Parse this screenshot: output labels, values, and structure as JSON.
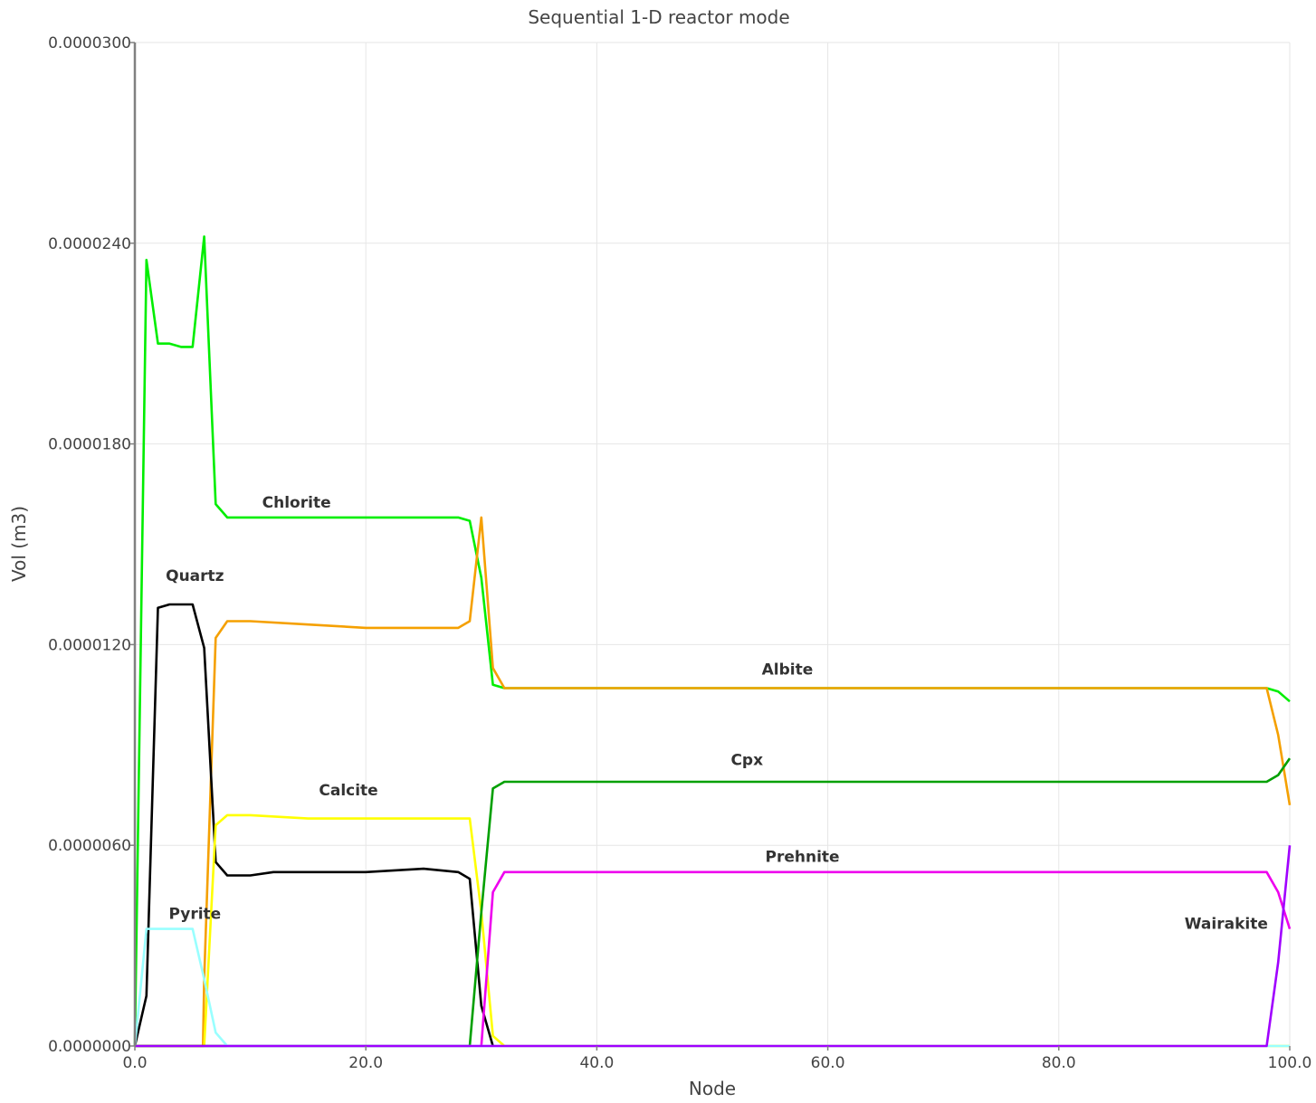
{
  "chart_data": {
    "type": "line",
    "title": "Sequential 1-D reactor mode",
    "xlabel": "Node",
    "ylabel": "Vol (m3)",
    "xlim": [
      0,
      100
    ],
    "ylim": [
      0,
      3e-05
    ],
    "x_ticks": [
      0,
      20,
      40,
      60,
      80,
      100
    ],
    "x_tick_labels": [
      "0.0",
      "20.0",
      "40.0",
      "60.0",
      "80.0",
      "100.0"
    ],
    "y_ticks": [
      0,
      6e-06,
      1.2e-05,
      1.8e-05,
      2.4e-05,
      3e-05
    ],
    "y_tick_labels": [
      "0.0000000",
      "0.0000060",
      "0.0000120",
      "0.0000180",
      "0.0000240",
      "0.0000300"
    ],
    "grid": true,
    "series": [
      {
        "name": "Chlorite",
        "color": "#00ee00",
        "points": [
          [
            0,
            0
          ],
          [
            1,
            2.35e-05
          ],
          [
            2,
            2.1e-05
          ],
          [
            3,
            2.1e-05
          ],
          [
            4,
            2.09e-05
          ],
          [
            5,
            2.09e-05
          ],
          [
            6,
            2.42e-05
          ],
          [
            7,
            1.62e-05
          ],
          [
            8,
            1.58e-05
          ],
          [
            10,
            1.58e-05
          ],
          [
            15,
            1.58e-05
          ],
          [
            18,
            1.58e-05
          ],
          [
            25,
            1.58e-05
          ],
          [
            28,
            1.58e-05
          ],
          [
            29,
            1.57e-05
          ],
          [
            30,
            1.4e-05
          ],
          [
            31,
            1.08e-05
          ],
          [
            32,
            1.07e-05
          ],
          [
            40,
            1.07e-05
          ],
          [
            60,
            1.07e-05
          ],
          [
            80,
            1.07e-05
          ],
          [
            98,
            1.07e-05
          ],
          [
            99,
            1.06e-05
          ],
          [
            100,
            1.03e-05
          ]
        ]
      },
      {
        "name": "Albite",
        "color": "#f5a000",
        "points": [
          [
            0,
            0
          ],
          [
            5.9,
            0
          ],
          [
            6,
            2e-06
          ],
          [
            7,
            1.22e-05
          ],
          [
            8,
            1.27e-05
          ],
          [
            10,
            1.27e-05
          ],
          [
            15,
            1.26e-05
          ],
          [
            20,
            1.25e-05
          ],
          [
            28,
            1.25e-05
          ],
          [
            29,
            1.27e-05
          ],
          [
            30,
            1.58e-05
          ],
          [
            31,
            1.13e-05
          ],
          [
            32,
            1.07e-05
          ],
          [
            40,
            1.07e-05
          ],
          [
            45,
            1.07e-05
          ],
          [
            60,
            1.07e-05
          ],
          [
            80,
            1.07e-05
          ],
          [
            90,
            1.07e-05
          ],
          [
            98,
            1.07e-05
          ],
          [
            99,
            9.3e-06
          ],
          [
            100,
            7.2e-06
          ]
        ]
      },
      {
        "name": "Quartz",
        "color": "#000000",
        "points": [
          [
            0,
            0
          ],
          [
            1,
            1.5e-06
          ],
          [
            2,
            1.31e-05
          ],
          [
            3,
            1.32e-05
          ],
          [
            4,
            1.32e-05
          ],
          [
            5,
            1.32e-05
          ],
          [
            6,
            1.19e-05
          ],
          [
            7,
            5.5e-06
          ],
          [
            8,
            5.1e-06
          ],
          [
            10,
            5.1e-06
          ],
          [
            12,
            5.2e-06
          ],
          [
            15,
            5.2e-06
          ],
          [
            20,
            5.2e-06
          ],
          [
            25,
            5.3e-06
          ],
          [
            28,
            5.2e-06
          ],
          [
            29,
            5e-06
          ],
          [
            30,
            1.2e-06
          ],
          [
            31,
            0
          ]
        ]
      },
      {
        "name": "Calcite",
        "color": "#ffff00",
        "points": [
          [
            0,
            0
          ],
          [
            6,
            0
          ],
          [
            7,
            6.6e-06
          ],
          [
            8,
            6.9e-06
          ],
          [
            10,
            6.9e-06
          ],
          [
            15,
            6.8e-06
          ],
          [
            20,
            6.8e-06
          ],
          [
            28,
            6.8e-06
          ],
          [
            29,
            6.8e-06
          ],
          [
            30,
            4e-06
          ],
          [
            31,
            3e-07
          ],
          [
            32,
            0
          ],
          [
            100,
            0
          ]
        ]
      },
      {
        "name": "Cpx",
        "color": "#00a000",
        "points": [
          [
            0,
            0
          ],
          [
            29,
            0
          ],
          [
            30,
            4e-06
          ],
          [
            31,
            7.7e-06
          ],
          [
            32,
            7.9e-06
          ],
          [
            40,
            7.9e-06
          ],
          [
            60,
            7.9e-06
          ],
          [
            80,
            7.9e-06
          ],
          [
            98,
            7.9e-06
          ],
          [
            99,
            8.1e-06
          ],
          [
            100,
            8.6e-06
          ]
        ]
      },
      {
        "name": "Prehnite",
        "color": "#ee00ee",
        "points": [
          [
            30,
            0
          ],
          [
            31,
            4.6e-06
          ],
          [
            32,
            5.2e-06
          ],
          [
            40,
            5.2e-06
          ],
          [
            45,
            5.2e-06
          ],
          [
            60,
            5.2e-06
          ],
          [
            80,
            5.2e-06
          ],
          [
            89,
            5.2e-06
          ],
          [
            98,
            5.2e-06
          ],
          [
            99,
            4.6e-06
          ],
          [
            100,
            3.5e-06
          ]
        ]
      },
      {
        "name": "Pyrite",
        "color": "#99ffff",
        "points": [
          [
            0,
            0
          ],
          [
            1,
            3.5e-06
          ],
          [
            2,
            3.5e-06
          ],
          [
            5,
            3.5e-06
          ],
          [
            6,
            2e-06
          ],
          [
            7,
            4e-07
          ],
          [
            8,
            0
          ],
          [
            100,
            0
          ]
        ]
      },
      {
        "name": "Wairakite",
        "color": "#a000ff",
        "points": [
          [
            0,
            0
          ],
          [
            98,
            0
          ],
          [
            99,
            2.5e-06
          ],
          [
            100,
            6e-06
          ]
        ]
      }
    ],
    "annotations": [
      {
        "text": "Chlorite",
        "x": 14,
        "y": 1.61e-05
      },
      {
        "text": "Quartz",
        "x": 5.2,
        "y": 1.39e-05
      },
      {
        "text": "Albite",
        "x": 56.5,
        "y": 1.11e-05
      },
      {
        "text": "Cpx",
        "x": 53,
        "y": 8.4e-06
      },
      {
        "text": "Calcite",
        "x": 18.5,
        "y": 7.5e-06
      },
      {
        "text": "Prehnite",
        "x": 57.8,
        "y": 5.5e-06
      },
      {
        "text": "Pyrite",
        "x": 5.2,
        "y": 3.8e-06
      },
      {
        "text": "Wairakite",
        "x": 94.5,
        "y": 3.5e-06
      }
    ]
  }
}
